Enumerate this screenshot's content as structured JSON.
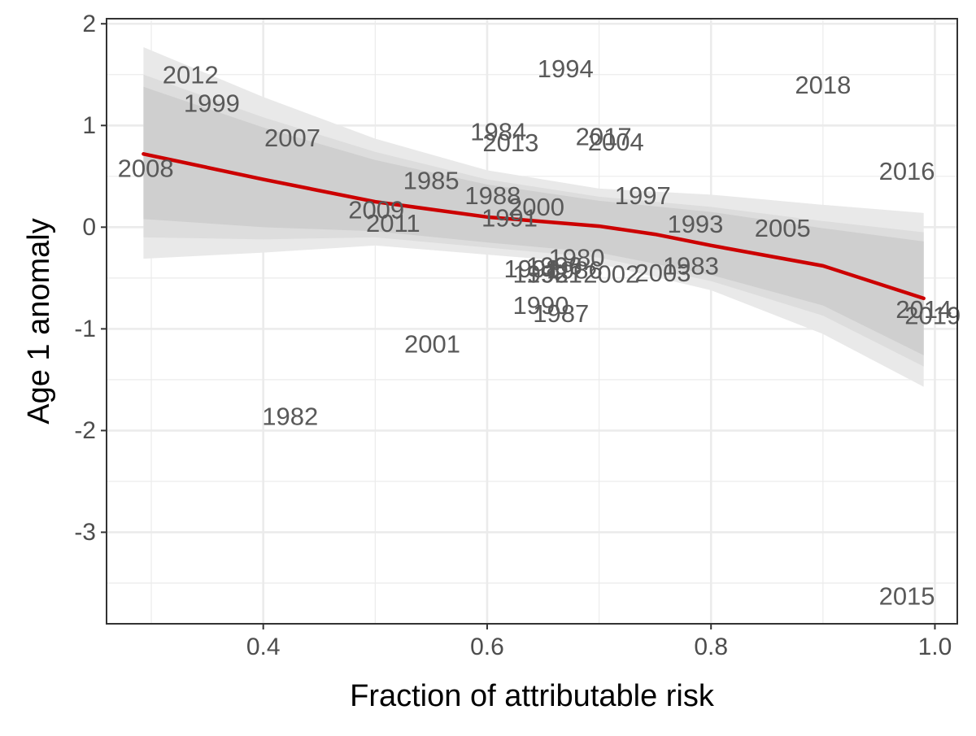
{
  "chart_data": {
    "type": "scatter",
    "xlabel": "Fraction of attributable risk",
    "ylabel": "Age 1 anomaly",
    "xlim": [
      0.26,
      1.02
    ],
    "ylim": [
      -3.9,
      2.05
    ],
    "x_ticks": [
      {
        "value": 0.4,
        "label": "0.4"
      },
      {
        "value": 0.6,
        "label": "0.6"
      },
      {
        "value": 0.8,
        "label": "0.8"
      },
      {
        "value": 1.0,
        "label": "1.0"
      }
    ],
    "y_ticks": [
      {
        "value": 2,
        "label": "2"
      },
      {
        "value": 1,
        "label": "1"
      },
      {
        "value": 0,
        "label": "0"
      },
      {
        "value": -1,
        "label": "-1"
      },
      {
        "value": -2,
        "label": "-2"
      },
      {
        "value": -3,
        "label": "-3"
      }
    ],
    "x_minor_grid": [
      0.3,
      0.5,
      0.7,
      0.9
    ],
    "y_minor_grid": [
      1.5,
      0.5,
      -0.5,
      -1.5,
      -2.5,
      -3.5
    ],
    "grid": true,
    "points": [
      {
        "label": "2012",
        "x": 0.335,
        "y": 1.5
      },
      {
        "label": "1999",
        "x": 0.354,
        "y": 1.22
      },
      {
        "label": "2007",
        "x": 0.426,
        "y": 0.88
      },
      {
        "label": "2008",
        "x": 0.295,
        "y": 0.58
      },
      {
        "label": "1994",
        "x": 0.67,
        "y": 1.56
      },
      {
        "label": "2018",
        "x": 0.9,
        "y": 1.4
      },
      {
        "label": "1984",
        "x": 0.61,
        "y": 0.94
      },
      {
        "label": "2013",
        "x": 0.621,
        "y": 0.83
      },
      {
        "label": "2017",
        "x": 0.704,
        "y": 0.89
      },
      {
        "label": "2004",
        "x": 0.715,
        "y": 0.84
      },
      {
        "label": "2016",
        "x": 0.975,
        "y": 0.55
      },
      {
        "label": "1985",
        "x": 0.55,
        "y": 0.46
      },
      {
        "label": "1988",
        "x": 0.605,
        "y": 0.31
      },
      {
        "label": "1997",
        "x": 0.739,
        "y": 0.31
      },
      {
        "label": "2000",
        "x": 0.644,
        "y": 0.2
      },
      {
        "label": "2009",
        "x": 0.501,
        "y": 0.17
      },
      {
        "label": "1991",
        "x": 0.62,
        "y": 0.09
      },
      {
        "label": "2011",
        "x": 0.516,
        "y": 0.04
      },
      {
        "label": "1993",
        "x": 0.786,
        "y": 0.03
      },
      {
        "label": "2005",
        "x": 0.864,
        "y": -0.01
      },
      {
        "label": "1980",
        "x": 0.68,
        "y": -0.3
      },
      {
        "label": "1996",
        "x": 0.66,
        "y": -0.38
      },
      {
        "label": "1998",
        "x": 0.64,
        "y": -0.41
      },
      {
        "label": "1992",
        "x": 0.648,
        "y": -0.46
      },
      {
        "label": "1986",
        "x": 0.678,
        "y": -0.42
      },
      {
        "label": "1981",
        "x": 0.66,
        "y": -0.46
      },
      {
        "label": "2002",
        "x": 0.711,
        "y": -0.46
      },
      {
        "label": "1983",
        "x": 0.782,
        "y": -0.38
      },
      {
        "label": "2003",
        "x": 0.757,
        "y": -0.45
      },
      {
        "label": "1990",
        "x": 0.648,
        "y": -0.77
      },
      {
        "label": "1987",
        "x": 0.666,
        "y": -0.85
      },
      {
        "label": "2014",
        "x": 0.99,
        "y": -0.81
      },
      {
        "label": "2019",
        "x": 0.998,
        "y": -0.87
      },
      {
        "label": "2001",
        "x": 0.551,
        "y": -1.15
      },
      {
        "label": "1982",
        "x": 0.424,
        "y": -1.86
      },
      {
        "label": "2015",
        "x": 0.975,
        "y": -3.63
      }
    ],
    "trend": {
      "x": [
        0.293,
        0.4,
        0.5,
        0.6,
        0.7,
        0.75,
        0.8,
        0.9,
        0.99
      ],
      "y": [
        0.72,
        0.47,
        0.25,
        0.1,
        0.01,
        -0.07,
        -0.18,
        -0.38,
        -0.7
      ]
    },
    "bands": [
      {
        "x": [
          0.293,
          0.4,
          0.5,
          0.6,
          0.7,
          0.8,
          0.9,
          0.99
        ],
        "upper": [
          1.77,
          1.28,
          0.87,
          0.56,
          0.38,
          0.32,
          0.22,
          0.14
        ],
        "lower": [
          -0.31,
          -0.25,
          -0.18,
          -0.27,
          -0.36,
          -0.62,
          -1.05,
          -1.57
        ]
      },
      {
        "x": [
          0.293,
          0.4,
          0.5,
          0.6,
          0.7,
          0.8,
          0.9,
          0.99
        ],
        "upper": [
          1.5,
          1.08,
          0.74,
          0.47,
          0.3,
          0.2,
          0.06,
          -0.05
        ],
        "lower": [
          -0.1,
          -0.12,
          -0.1,
          -0.2,
          -0.3,
          -0.53,
          -0.87,
          -1.37
        ]
      },
      {
        "x": [
          0.293,
          0.4,
          0.5,
          0.6,
          0.7,
          0.8,
          0.9,
          0.99
        ],
        "upper": [
          1.38,
          0.98,
          0.66,
          0.42,
          0.26,
          0.15,
          -0.01,
          -0.14
        ],
        "lower": [
          0.08,
          0.0,
          -0.04,
          -0.15,
          -0.25,
          -0.47,
          -0.77,
          -1.26
        ]
      }
    ],
    "colors": {
      "trend": "#cc0000",
      "band_outer": "#e9e9e9",
      "band_mid": "#dddddd",
      "band_inner": "#cfcfcf",
      "grid": "#ebebeb",
      "panel_border": "#333333",
      "label": "#595959"
    }
  }
}
